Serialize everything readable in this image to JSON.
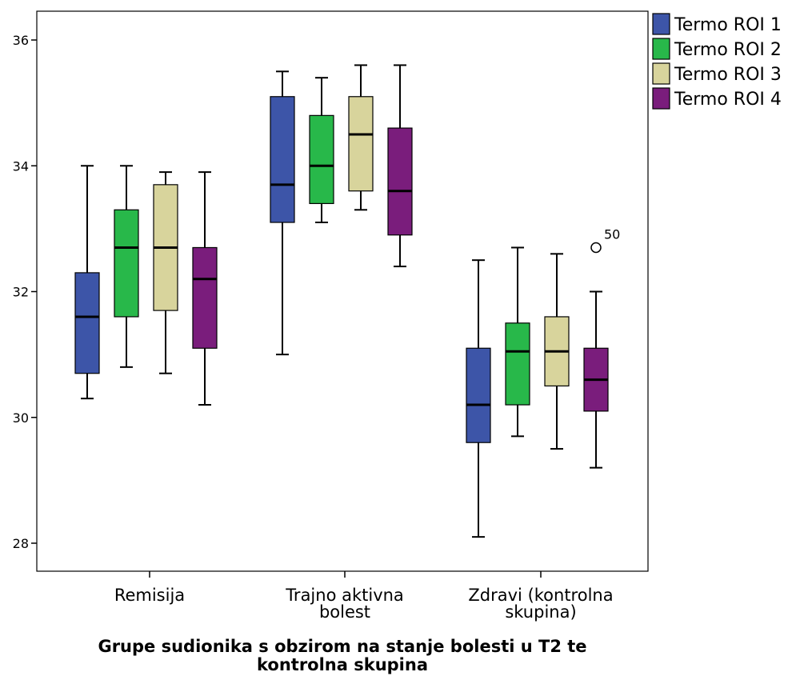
{
  "chart_data": {
    "type": "boxplot",
    "xlabel": [
      "Grupe sudionika s obzirom na stanje bolesti u T2 te",
      "kontrolna skupina"
    ],
    "ylabel": "",
    "ylim": [
      27.6,
      36.5
    ],
    "yticks": [
      28,
      30,
      32,
      34,
      36
    ],
    "grid": false,
    "legend_position": "top-right",
    "categories": [
      [
        "Remisija"
      ],
      [
        "Trajno aktivna",
        "bolest"
      ],
      [
        "Zdravi (kontrolna",
        "skupina)"
      ]
    ],
    "series": [
      {
        "name": "Termo ROI 1",
        "color": "#3d55a8",
        "boxes": [
          {
            "min": 30.3,
            "q1": 30.7,
            "median": 31.6,
            "q3": 32.3,
            "max": 34.0
          },
          {
            "min": 31.0,
            "q1": 33.1,
            "median": 33.7,
            "q3": 35.1,
            "max": 35.5
          },
          {
            "min": 28.1,
            "q1": 29.6,
            "median": 30.2,
            "q3": 31.1,
            "max": 32.5
          }
        ]
      },
      {
        "name": "Termo ROI 2",
        "color": "#28b84a",
        "boxes": [
          {
            "min": 30.8,
            "q1": 31.6,
            "median": 32.7,
            "q3": 33.3,
            "max": 34.0
          },
          {
            "min": 33.1,
            "q1": 33.4,
            "median": 34.0,
            "q3": 34.8,
            "max": 35.4
          },
          {
            "min": 29.7,
            "q1": 30.2,
            "median": 31.05,
            "q3": 31.5,
            "max": 32.7
          }
        ]
      },
      {
        "name": "Termo ROI 3",
        "color": "#d8d49c",
        "boxes": [
          {
            "min": 30.7,
            "q1": 31.7,
            "median": 32.7,
            "q3": 33.7,
            "max": 33.9
          },
          {
            "min": 33.3,
            "q1": 33.6,
            "median": 34.5,
            "q3": 35.1,
            "max": 35.6
          },
          {
            "min": 29.5,
            "q1": 30.5,
            "median": 31.05,
            "q3": 31.6,
            "max": 32.6
          }
        ]
      },
      {
        "name": "Termo ROI 4",
        "color": "#7a1d7c",
        "boxes": [
          {
            "min": 30.2,
            "q1": 31.1,
            "median": 32.2,
            "q3": 32.7,
            "max": 33.9
          },
          {
            "min": 32.4,
            "q1": 32.9,
            "median": 33.6,
            "q3": 34.6,
            "max": 35.6
          },
          {
            "min": 29.2,
            "q1": 30.1,
            "median": 30.6,
            "q3": 31.1,
            "max": 32.0
          }
        ]
      }
    ],
    "outliers": [
      {
        "series": 3,
        "category": 2,
        "value": 32.7,
        "label": "50"
      }
    ]
  }
}
